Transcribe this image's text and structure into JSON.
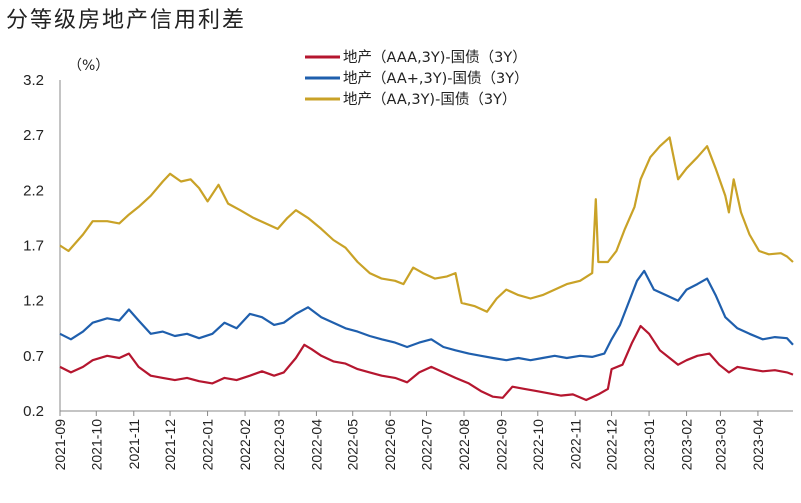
{
  "title": "分等级房地产信用利差",
  "chart_data": {
    "type": "line",
    "title": "分等级房地产信用利差",
    "unit": "（%）",
    "ylim": [
      0.2,
      3.2
    ],
    "yticks": [
      "0.2",
      "0.7",
      "1.2",
      "1.7",
      "2.2",
      "2.7",
      "3.2"
    ],
    "grid": false,
    "legend_position": "top-center",
    "xlim": [
      "2021-09-01",
      "2023-04-30"
    ],
    "x_tick_labels": [
      "2021-09",
      "2021-10",
      "2021-11",
      "2021-12",
      "2022-01",
      "2022-02",
      "2022-03",
      "2022-04",
      "2022-05",
      "2022-06",
      "2022-07",
      "2022-08",
      "2022-09",
      "2022-10",
      "2022-11",
      "2022-12",
      "2023-01",
      "2023-02",
      "2023-03",
      "2023-04"
    ],
    "series": [
      {
        "name": "地产（AAA,3Y)-国债（3Y）",
        "color": "#b5162f",
        "points": [
          [
            "2021-09-01",
            0.6
          ],
          [
            "2021-09-10",
            0.55
          ],
          [
            "2021-09-20",
            0.6
          ],
          [
            "2021-09-28",
            0.66
          ],
          [
            "2021-10-10",
            0.7
          ],
          [
            "2021-10-20",
            0.68
          ],
          [
            "2021-10-28",
            0.72
          ],
          [
            "2021-11-05",
            0.6
          ],
          [
            "2021-11-15",
            0.52
          ],
          [
            "2021-11-25",
            0.5
          ],
          [
            "2021-12-05",
            0.48
          ],
          [
            "2021-12-15",
            0.5
          ],
          [
            "2021-12-25",
            0.47
          ],
          [
            "2022-01-05",
            0.45
          ],
          [
            "2022-01-15",
            0.5
          ],
          [
            "2022-01-25",
            0.48
          ],
          [
            "2022-02-05",
            0.52
          ],
          [
            "2022-02-15",
            0.56
          ],
          [
            "2022-02-25",
            0.52
          ],
          [
            "2022-03-05",
            0.55
          ],
          [
            "2022-03-15",
            0.68
          ],
          [
            "2022-03-22",
            0.8
          ],
          [
            "2022-03-28",
            0.76
          ],
          [
            "2022-04-05",
            0.7
          ],
          [
            "2022-04-15",
            0.65
          ],
          [
            "2022-04-25",
            0.63
          ],
          [
            "2022-05-05",
            0.58
          ],
          [
            "2022-05-15",
            0.55
          ],
          [
            "2022-05-25",
            0.52
          ],
          [
            "2022-06-05",
            0.5
          ],
          [
            "2022-06-15",
            0.46
          ],
          [
            "2022-06-25",
            0.55
          ],
          [
            "2022-07-05",
            0.6
          ],
          [
            "2022-07-15",
            0.55
          ],
          [
            "2022-07-25",
            0.5
          ],
          [
            "2022-08-05",
            0.45
          ],
          [
            "2022-08-15",
            0.38
          ],
          [
            "2022-08-25",
            0.33
          ],
          [
            "2022-09-02",
            0.32
          ],
          [
            "2022-09-10",
            0.42
          ],
          [
            "2022-09-20",
            0.4
          ],
          [
            "2022-09-30",
            0.38
          ],
          [
            "2022-10-10",
            0.36
          ],
          [
            "2022-10-20",
            0.34
          ],
          [
            "2022-10-30",
            0.35
          ],
          [
            "2022-11-10",
            0.3
          ],
          [
            "2022-11-20",
            0.35
          ],
          [
            "2022-11-28",
            0.4
          ],
          [
            "2022-12-01",
            0.58
          ],
          [
            "2022-12-10",
            0.62
          ],
          [
            "2022-12-18",
            0.82
          ],
          [
            "2022-12-25",
            0.97
          ],
          [
            "2023-01-01",
            0.9
          ],
          [
            "2023-01-10",
            0.75
          ],
          [
            "2023-01-18",
            0.68
          ],
          [
            "2023-01-25",
            0.62
          ],
          [
            "2023-02-01",
            0.66
          ],
          [
            "2023-02-10",
            0.7
          ],
          [
            "2023-02-20",
            0.72
          ],
          [
            "2023-02-28",
            0.62
          ],
          [
            "2023-03-08",
            0.55
          ],
          [
            "2023-03-15",
            0.6
          ],
          [
            "2023-03-25",
            0.58
          ],
          [
            "2023-04-05",
            0.56
          ],
          [
            "2023-04-15",
            0.57
          ],
          [
            "2023-04-25",
            0.55
          ],
          [
            "2023-04-30",
            0.53
          ]
        ]
      },
      {
        "name": "地产（AA+,3Y)-国债（3Y）",
        "color": "#1f5fad",
        "points": [
          [
            "2021-09-01",
            0.9
          ],
          [
            "2021-09-10",
            0.85
          ],
          [
            "2021-09-20",
            0.92
          ],
          [
            "2021-09-28",
            1.0
          ],
          [
            "2021-10-10",
            1.04
          ],
          [
            "2021-10-20",
            1.02
          ],
          [
            "2021-10-28",
            1.12
          ],
          [
            "2021-11-05",
            1.02
          ],
          [
            "2021-11-15",
            0.9
          ],
          [
            "2021-11-25",
            0.92
          ],
          [
            "2021-12-05",
            0.88
          ],
          [
            "2021-12-15",
            0.9
          ],
          [
            "2021-12-25",
            0.86
          ],
          [
            "2022-01-05",
            0.9
          ],
          [
            "2022-01-15",
            1.0
          ],
          [
            "2022-01-25",
            0.95
          ],
          [
            "2022-02-05",
            1.08
          ],
          [
            "2022-02-15",
            1.05
          ],
          [
            "2022-02-25",
            0.98
          ],
          [
            "2022-03-05",
            1.0
          ],
          [
            "2022-03-15",
            1.08
          ],
          [
            "2022-03-25",
            1.14
          ],
          [
            "2022-04-05",
            1.05
          ],
          [
            "2022-04-15",
            1.0
          ],
          [
            "2022-04-25",
            0.95
          ],
          [
            "2022-05-05",
            0.92
          ],
          [
            "2022-05-15",
            0.88
          ],
          [
            "2022-05-25",
            0.85
          ],
          [
            "2022-06-05",
            0.82
          ],
          [
            "2022-06-15",
            0.78
          ],
          [
            "2022-06-25",
            0.82
          ],
          [
            "2022-07-05",
            0.85
          ],
          [
            "2022-07-15",
            0.78
          ],
          [
            "2022-07-25",
            0.75
          ],
          [
            "2022-08-05",
            0.72
          ],
          [
            "2022-08-15",
            0.7
          ],
          [
            "2022-08-25",
            0.68
          ],
          [
            "2022-09-05",
            0.66
          ],
          [
            "2022-09-15",
            0.68
          ],
          [
            "2022-09-25",
            0.66
          ],
          [
            "2022-10-05",
            0.68
          ],
          [
            "2022-10-15",
            0.7
          ],
          [
            "2022-10-25",
            0.68
          ],
          [
            "2022-11-05",
            0.7
          ],
          [
            "2022-11-15",
            0.69
          ],
          [
            "2022-11-25",
            0.72
          ],
          [
            "2022-12-01",
            0.85
          ],
          [
            "2022-12-08",
            0.98
          ],
          [
            "2022-12-15",
            1.18
          ],
          [
            "2022-12-22",
            1.38
          ],
          [
            "2022-12-28",
            1.47
          ],
          [
            "2023-01-05",
            1.3
          ],
          [
            "2023-01-15",
            1.25
          ],
          [
            "2023-01-25",
            1.2
          ],
          [
            "2023-02-01",
            1.3
          ],
          [
            "2023-02-10",
            1.35
          ],
          [
            "2023-02-18",
            1.4
          ],
          [
            "2023-02-25",
            1.25
          ],
          [
            "2023-03-05",
            1.05
          ],
          [
            "2023-03-15",
            0.95
          ],
          [
            "2023-03-25",
            0.9
          ],
          [
            "2023-04-05",
            0.85
          ],
          [
            "2023-04-15",
            0.87
          ],
          [
            "2023-04-25",
            0.86
          ],
          [
            "2023-04-30",
            0.8
          ]
        ]
      },
      {
        "name": "地产（AA,3Y)-国债（3Y）",
        "color": "#c9a227",
        "points": [
          [
            "2021-09-01",
            1.7
          ],
          [
            "2021-09-08",
            1.65
          ],
          [
            "2021-09-20",
            1.8
          ],
          [
            "2021-09-28",
            1.92
          ],
          [
            "2021-10-10",
            1.92
          ],
          [
            "2021-10-20",
            1.9
          ],
          [
            "2021-10-28",
            1.98
          ],
          [
            "2021-11-05",
            2.05
          ],
          [
            "2021-11-15",
            2.15
          ],
          [
            "2021-11-25",
            2.28
          ],
          [
            "2021-12-01",
            2.35
          ],
          [
            "2021-12-10",
            2.28
          ],
          [
            "2021-12-18",
            2.3
          ],
          [
            "2021-12-25",
            2.22
          ],
          [
            "2022-01-01",
            2.1
          ],
          [
            "2022-01-10",
            2.25
          ],
          [
            "2022-01-18",
            2.08
          ],
          [
            "2022-01-28",
            2.02
          ],
          [
            "2022-02-08",
            1.95
          ],
          [
            "2022-02-18",
            1.9
          ],
          [
            "2022-02-28",
            1.85
          ],
          [
            "2022-03-08",
            1.95
          ],
          [
            "2022-03-15",
            2.02
          ],
          [
            "2022-03-25",
            1.95
          ],
          [
            "2022-04-05",
            1.85
          ],
          [
            "2022-04-15",
            1.75
          ],
          [
            "2022-04-25",
            1.68
          ],
          [
            "2022-05-05",
            1.55
          ],
          [
            "2022-05-15",
            1.45
          ],
          [
            "2022-05-25",
            1.4
          ],
          [
            "2022-06-05",
            1.38
          ],
          [
            "2022-06-12",
            1.35
          ],
          [
            "2022-06-20",
            1.5
          ],
          [
            "2022-06-28",
            1.45
          ],
          [
            "2022-07-08",
            1.4
          ],
          [
            "2022-07-18",
            1.42
          ],
          [
            "2022-07-25",
            1.45
          ],
          [
            "2022-07-30",
            1.18
          ],
          [
            "2022-08-10",
            1.15
          ],
          [
            "2022-08-20",
            1.1
          ],
          [
            "2022-08-28",
            1.22
          ],
          [
            "2022-09-05",
            1.3
          ],
          [
            "2022-09-15",
            1.25
          ],
          [
            "2022-09-25",
            1.22
          ],
          [
            "2022-10-05",
            1.25
          ],
          [
            "2022-10-15",
            1.3
          ],
          [
            "2022-10-25",
            1.35
          ],
          [
            "2022-11-05",
            1.38
          ],
          [
            "2022-11-15",
            1.45
          ],
          [
            "2022-11-18",
            2.12
          ],
          [
            "2022-11-20",
            1.55
          ],
          [
            "2022-11-28",
            1.55
          ],
          [
            "2022-12-05",
            1.65
          ],
          [
            "2022-12-12",
            1.85
          ],
          [
            "2022-12-20",
            2.05
          ],
          [
            "2022-12-25",
            2.3
          ],
          [
            "2023-01-02",
            2.5
          ],
          [
            "2023-01-10",
            2.6
          ],
          [
            "2023-01-18",
            2.68
          ],
          [
            "2023-01-25",
            2.3
          ],
          [
            "2023-02-01",
            2.4
          ],
          [
            "2023-02-10",
            2.5
          ],
          [
            "2023-02-18",
            2.6
          ],
          [
            "2023-02-25",
            2.4
          ],
          [
            "2023-03-05",
            2.15
          ],
          [
            "2023-03-08",
            2.0
          ],
          [
            "2023-03-12",
            2.3
          ],
          [
            "2023-03-18",
            2.0
          ],
          [
            "2023-03-25",
            1.8
          ],
          [
            "2023-04-02",
            1.65
          ],
          [
            "2023-04-10",
            1.62
          ],
          [
            "2023-04-20",
            1.63
          ],
          [
            "2023-04-25",
            1.6
          ],
          [
            "2023-04-30",
            1.55
          ]
        ]
      }
    ]
  }
}
